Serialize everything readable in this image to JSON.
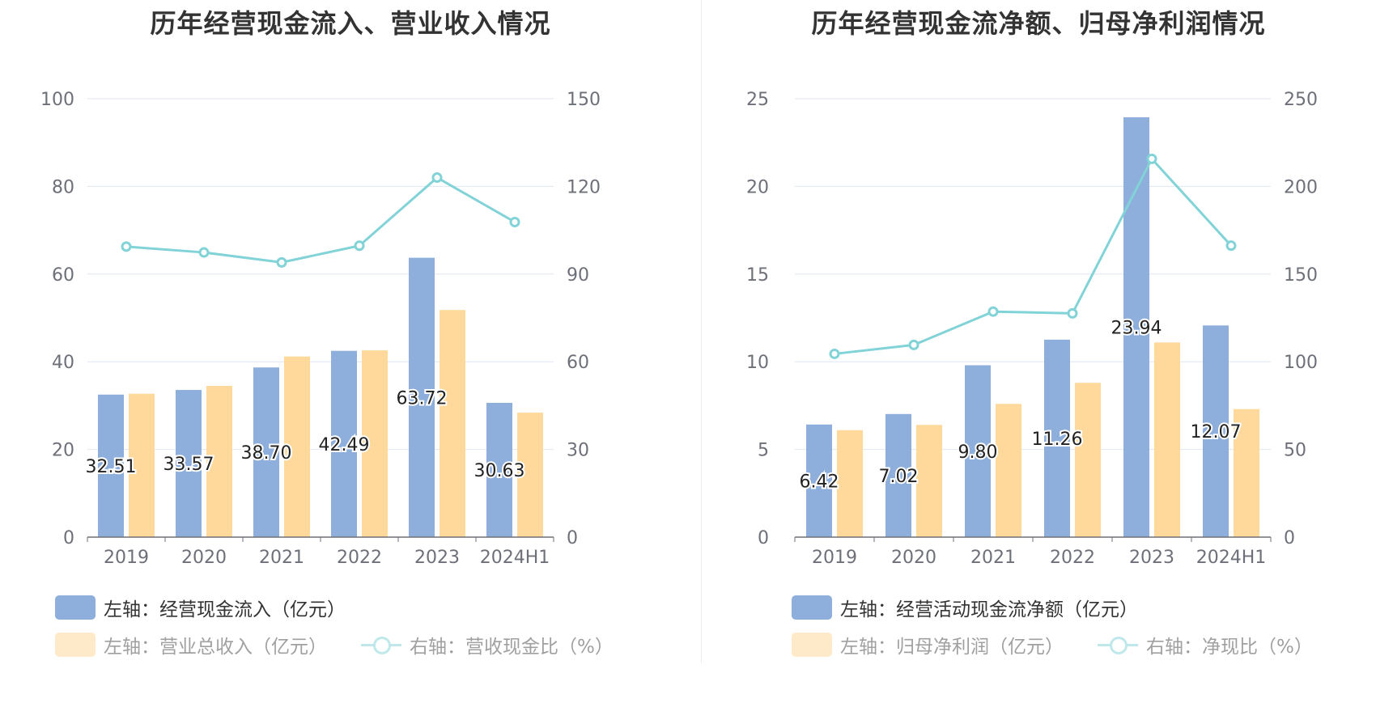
{
  "colors": {
    "bar_primary": "#8eaedb",
    "bar_secondary": "#fed99b",
    "line": "#82d3d7",
    "grid": "#e0e6f1",
    "axis": "#6e7079"
  },
  "chart_data": [
    {
      "type": "bar",
      "title": "历年经营现金流入、营业收入情况",
      "categories": [
        "2019",
        "2020",
        "2021",
        "2022",
        "2023",
        "2024H1"
      ],
      "y_left": {
        "ylim": [
          0,
          100
        ],
        "ticks": [
          "0",
          "20",
          "40",
          "60",
          "80",
          "100"
        ]
      },
      "y_right": {
        "ylim": [
          0,
          150
        ],
        "ticks": [
          "0",
          "30",
          "60",
          "90",
          "120",
          "150"
        ]
      },
      "grid": true,
      "legend_position": "bottom",
      "series": [
        {
          "name": "左轴：经营现金流入（亿元）",
          "type": "bar",
          "axis": "left",
          "values": [
            32.51,
            33.57,
            38.7,
            42.49,
            63.72,
            30.63
          ],
          "labels": [
            "32.51",
            "33.57",
            "38.70",
            "42.49",
            "63.72",
            "30.63"
          ]
        },
        {
          "name": "左轴：营业总收入（亿元）",
          "type": "bar",
          "axis": "left",
          "values": [
            32.7,
            34.5,
            41.2,
            42.6,
            51.8,
            28.4
          ]
        },
        {
          "name": "右轴：营收现金比（%）",
          "type": "line",
          "axis": "right",
          "values": [
            99.4,
            97.4,
            94.0,
            99.7,
            123.0,
            107.8
          ]
        }
      ]
    },
    {
      "type": "bar",
      "title": "历年经营现金流净额、归母净利润情况",
      "categories": [
        "2019",
        "2020",
        "2021",
        "2022",
        "2023",
        "2024H1"
      ],
      "y_left": {
        "ylim": [
          0,
          25
        ],
        "ticks": [
          "0",
          "5",
          "10",
          "15",
          "20",
          "25"
        ]
      },
      "y_right": {
        "ylim": [
          0,
          250
        ],
        "ticks": [
          "0",
          "50",
          "100",
          "150",
          "200",
          "250"
        ]
      },
      "grid": true,
      "legend_position": "bottom",
      "series": [
        {
          "name": "左轴：经营活动现金流净额（亿元）",
          "type": "bar",
          "axis": "left",
          "values": [
            6.42,
            7.02,
            9.8,
            11.26,
            23.94,
            12.07
          ],
          "labels": [
            "6.42",
            "7.02",
            "9.80",
            "11.26",
            "23.94",
            "12.07"
          ]
        },
        {
          "name": "左轴：归母净利润（亿元）",
          "type": "bar",
          "axis": "left",
          "values": [
            6.1,
            6.4,
            7.6,
            8.8,
            11.1,
            7.3
          ]
        },
        {
          "name": "右轴：净现比（%）",
          "type": "line",
          "axis": "right",
          "values": [
            104.5,
            109.6,
            128.6,
            127.6,
            215.7,
            166.2
          ]
        }
      ]
    }
  ]
}
